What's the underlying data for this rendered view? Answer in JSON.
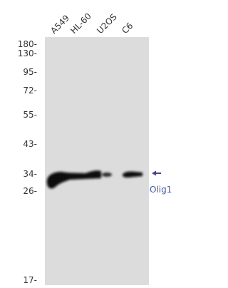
{
  "lanes": [
    "A549",
    "HL-60",
    "U2OS",
    "C6"
  ],
  "markers": [
    "180-",
    "130-",
    "95-",
    "72-",
    "55-",
    "43-",
    "34-",
    "26-",
    "17-"
  ],
  "target": "Olig1"
}
